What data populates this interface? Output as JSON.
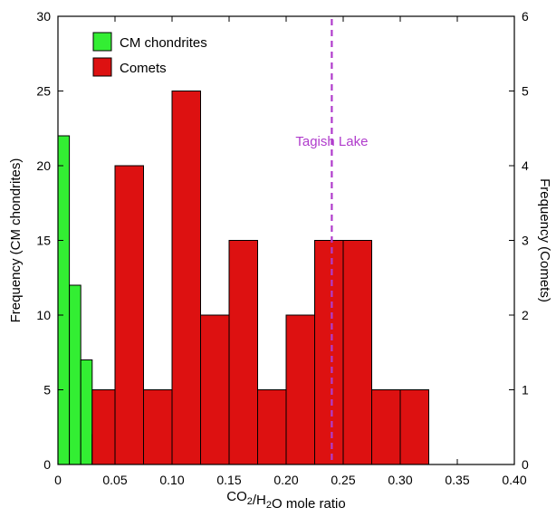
{
  "chart_data": {
    "type": "bar",
    "subtype": "histogram",
    "xlabel": "CO2/H2O mole ratio",
    "ylabel_left": "Frequency (CM chondrites)",
    "ylabel_right": "Frequency (Comets)",
    "xlim": [
      0,
      0.4
    ],
    "ylim_left": [
      0,
      30
    ],
    "ylim_right": [
      0,
      6
    ],
    "x_ticks": [
      "0",
      "0.05",
      "0.10",
      "0.15",
      "0.20",
      "0.25",
      "0.30",
      "0.35",
      "0.40"
    ],
    "y_ticks_left": [
      "0",
      "5",
      "10",
      "15",
      "20",
      "25",
      "30"
    ],
    "y_ticks_right": [
      "0",
      "1",
      "2",
      "3",
      "4",
      "5",
      "6"
    ],
    "grid": false,
    "legend_position": "top-left",
    "series": [
      {
        "name": "CM chondrites",
        "axis": "left",
        "color": "#33ee33",
        "bins": [
          {
            "x0": 0.0,
            "x1": 0.01,
            "count": 22
          },
          {
            "x0": 0.01,
            "x1": 0.02,
            "count": 12
          },
          {
            "x0": 0.02,
            "x1": 0.03,
            "count": 7
          },
          {
            "x0": 0.03,
            "x1": 0.04,
            "count": 2
          },
          {
            "x0": 0.05,
            "x1": 0.06,
            "count": 1
          },
          {
            "x0": 0.06,
            "x1": 0.07,
            "count": 1
          }
        ]
      },
      {
        "name": "Comets",
        "axis": "right",
        "color": "#dd1111",
        "bins": [
          {
            "x0": 0.03,
            "x1": 0.05,
            "count": 1
          },
          {
            "x0": 0.05,
            "x1": 0.075,
            "count": 4
          },
          {
            "x0": 0.075,
            "x1": 0.1,
            "count": 1
          },
          {
            "x0": 0.1,
            "x1": 0.125,
            "count": 5
          },
          {
            "x0": 0.125,
            "x1": 0.15,
            "count": 2
          },
          {
            "x0": 0.15,
            "x1": 0.175,
            "count": 3
          },
          {
            "x0": 0.175,
            "x1": 0.2,
            "count": 1
          },
          {
            "x0": 0.2,
            "x1": 0.225,
            "count": 2
          },
          {
            "x0": 0.225,
            "x1": 0.25,
            "count": 3
          },
          {
            "x0": 0.25,
            "x1": 0.275,
            "count": 3
          },
          {
            "x0": 0.275,
            "x1": 0.3,
            "count": 1
          },
          {
            "x0": 0.3,
            "x1": 0.325,
            "count": 1
          }
        ]
      }
    ],
    "reference_line": {
      "label": "Tagish Lake",
      "x": 0.24,
      "color": "#b03ccc",
      "style": "dashed"
    }
  }
}
